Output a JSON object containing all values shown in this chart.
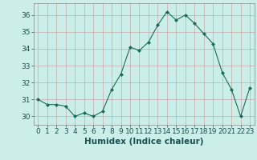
{
  "x": [
    0,
    1,
    2,
    3,
    4,
    5,
    6,
    7,
    8,
    9,
    10,
    11,
    12,
    13,
    14,
    15,
    16,
    17,
    18,
    19,
    20,
    21,
    22,
    23
  ],
  "y": [
    31.0,
    30.7,
    30.7,
    30.6,
    30.0,
    30.2,
    30.0,
    30.3,
    31.6,
    32.5,
    34.1,
    33.9,
    34.4,
    35.4,
    36.2,
    35.7,
    36.0,
    35.5,
    34.9,
    34.3,
    32.6,
    31.6,
    30.0,
    31.7
  ],
  "line_color": "#1a6b5a",
  "marker": "D",
  "marker_size": 2.0,
  "bg_color": "#cceee8",
  "grid_color": "#c8a8a8",
  "xlabel": "Humidex (Indice chaleur)",
  "xlim": [
    -0.5,
    23.5
  ],
  "ylim": [
    29.5,
    36.7
  ],
  "yticks": [
    30,
    31,
    32,
    33,
    34,
    35,
    36
  ],
  "xticks": [
    0,
    1,
    2,
    3,
    4,
    5,
    6,
    7,
    8,
    9,
    10,
    11,
    12,
    13,
    14,
    15,
    16,
    17,
    18,
    19,
    20,
    21,
    22,
    23
  ],
  "tick_fontsize": 6.5,
  "xlabel_fontsize": 7.5
}
